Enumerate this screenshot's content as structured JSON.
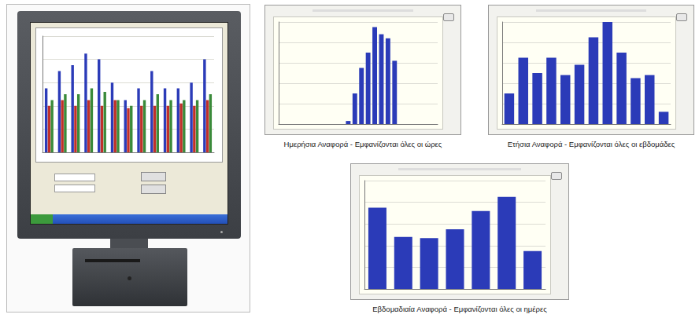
{
  "chart_data": [
    {
      "type": "bar",
      "categories": [
        null,
        null,
        null,
        null,
        null,
        null,
        null,
        null,
        null,
        null,
        null,
        null,
        null
      ],
      "series": [
        {
          "color": "#2b3bb8",
          "values": [
            55,
            70,
            75,
            85,
            80,
            60,
            45,
            55,
            70,
            55,
            55,
            60,
            80
          ]
        },
        {
          "color": "#c0302a",
          "values": [
            40,
            45,
            40,
            45,
            40,
            45,
            38,
            40,
            40,
            40,
            42,
            40,
            45
          ]
        },
        {
          "color": "#3a8a3a",
          "values": [
            45,
            50,
            50,
            55,
            52,
            45,
            40,
            45,
            50,
            45,
            45,
            45,
            50
          ]
        }
      ],
      "ylim": [
        0,
        100
      ],
      "yticks": [
        0,
        20,
        40,
        60,
        80,
        100
      ],
      "grid": true,
      "tick_labels": false
    },
    {
      "type": "bar",
      "title": "Ημερήσια Αναφορά - Εμφανίζονται όλες οι ώρες",
      "categories": [
        null,
        null,
        null,
        null,
        null,
        null,
        null,
        null,
        null,
        null,
        null,
        null,
        null,
        null,
        null,
        null,
        null,
        null,
        null,
        null,
        null,
        null,
        null,
        null
      ],
      "values": [
        0,
        0,
        0,
        0,
        0,
        0,
        0,
        0,
        0,
        0,
        3,
        30,
        55,
        70,
        95,
        88,
        84,
        62,
        0,
        0,
        0,
        0,
        0,
        0
      ],
      "color": "#2b3bb8",
      "ylim": [
        0,
        100
      ],
      "yticks": [
        0,
        20,
        40,
        60,
        80,
        100
      ],
      "grid": true,
      "tick_labels": false
    },
    {
      "type": "bar",
      "title": "Ετήσια Αναφορά - Εμφανίζονται όλες οι εβδομάδες",
      "categories": [
        null,
        null,
        null,
        null,
        null,
        null,
        null,
        null,
        null,
        null,
        null,
        null
      ],
      "values": [
        30,
        65,
        50,
        65,
        48,
        58,
        85,
        100,
        70,
        45,
        48,
        12
      ],
      "color": "#2b3bb8",
      "ylim": [
        0,
        100
      ],
      "yticks": [
        0,
        20,
        40,
        60,
        80,
        100
      ],
      "grid": true,
      "tick_labels": false
    },
    {
      "type": "bar",
      "title": "Εβδομαδιαία Αναφορά - Εμφανίζονται όλες οι ημέρες",
      "categories": [
        null,
        null,
        null,
        null,
        null,
        null,
        null
      ],
      "values": [
        75,
        48,
        47,
        55,
        72,
        85,
        35
      ],
      "color": "#2b3bb8",
      "ylim": [
        0,
        100
      ],
      "yticks": [
        0,
        20,
        40,
        60,
        80,
        100
      ],
      "grid": true,
      "tick_labels": false
    }
  ]
}
